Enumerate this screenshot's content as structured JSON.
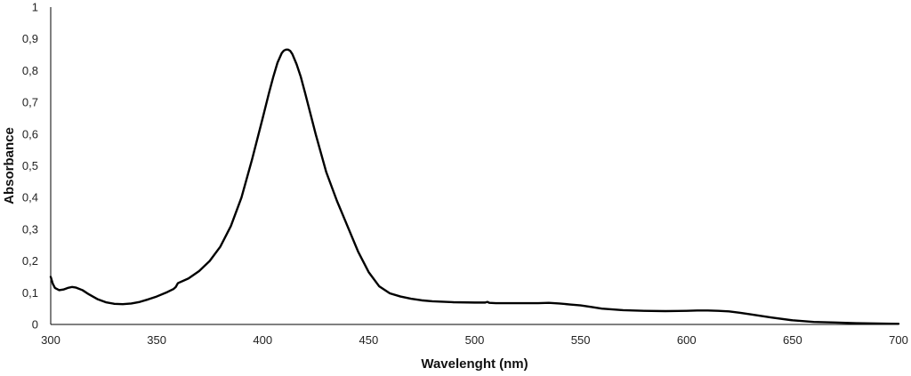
{
  "chart_data": {
    "type": "line",
    "title": "",
    "xlabel": "Wavelenght (nm)",
    "ylabel": "Absorbance",
    "xlim": [
      300,
      700
    ],
    "ylim": [
      0,
      1
    ],
    "xticks": [
      300,
      350,
      400,
      450,
      500,
      550,
      600,
      650,
      700
    ],
    "yticks": [
      0,
      0.1,
      0.2,
      0.3,
      0.4,
      0.5,
      0.6,
      0.7,
      0.8,
      0.9,
      1
    ],
    "xtick_labels": [
      "300",
      "350",
      "400",
      "450",
      "500",
      "550",
      "600",
      "650",
      "700"
    ],
    "ytick_labels": [
      "0",
      "0,1",
      "0,2",
      "0,3",
      "0,4",
      "0,5",
      "0,6",
      "0,7",
      "0,8",
      "0,9",
      "1"
    ],
    "grid": false,
    "line_color": "#000000",
    "series": [
      {
        "name": "Absorbance",
        "x": [
          300,
          301,
          302,
          304,
          306,
          308,
          310,
          312,
          315,
          318,
          322,
          326,
          330,
          334,
          338,
          342,
          346,
          350,
          355,
          358,
          359,
          360,
          365,
          370,
          375,
          380,
          385,
          390,
          395,
          400,
          403,
          405,
          407,
          409,
          410,
          411,
          412,
          413,
          414,
          416,
          418,
          420,
          425,
          430,
          435,
          440,
          445,
          450,
          455,
          460,
          465,
          470,
          475,
          480,
          490,
          500,
          505,
          506,
          507,
          510,
          520,
          530,
          535,
          540,
          545,
          550,
          555,
          560,
          570,
          580,
          590,
          600,
          605,
          610,
          615,
          620,
          625,
          630,
          640,
          650,
          660,
          670,
          680,
          690,
          700
        ],
        "values": [
          0.15,
          0.128,
          0.115,
          0.108,
          0.11,
          0.115,
          0.118,
          0.116,
          0.108,
          0.095,
          0.08,
          0.07,
          0.065,
          0.064,
          0.066,
          0.071,
          0.079,
          0.088,
          0.102,
          0.112,
          0.118,
          0.13,
          0.145,
          0.168,
          0.2,
          0.245,
          0.31,
          0.4,
          0.52,
          0.65,
          0.73,
          0.78,
          0.825,
          0.855,
          0.863,
          0.866,
          0.866,
          0.862,
          0.852,
          0.82,
          0.78,
          0.73,
          0.6,
          0.48,
          0.39,
          0.31,
          0.23,
          0.165,
          0.12,
          0.098,
          0.088,
          0.081,
          0.076,
          0.073,
          0.07,
          0.069,
          0.069,
          0.071,
          0.068,
          0.067,
          0.067,
          0.067,
          0.068,
          0.066,
          0.063,
          0.06,
          0.055,
          0.05,
          0.045,
          0.043,
          0.042,
          0.043,
          0.044,
          0.044,
          0.043,
          0.041,
          0.037,
          0.032,
          0.022,
          0.013,
          0.008,
          0.006,
          0.004,
          0.003,
          0.002
        ]
      }
    ]
  }
}
